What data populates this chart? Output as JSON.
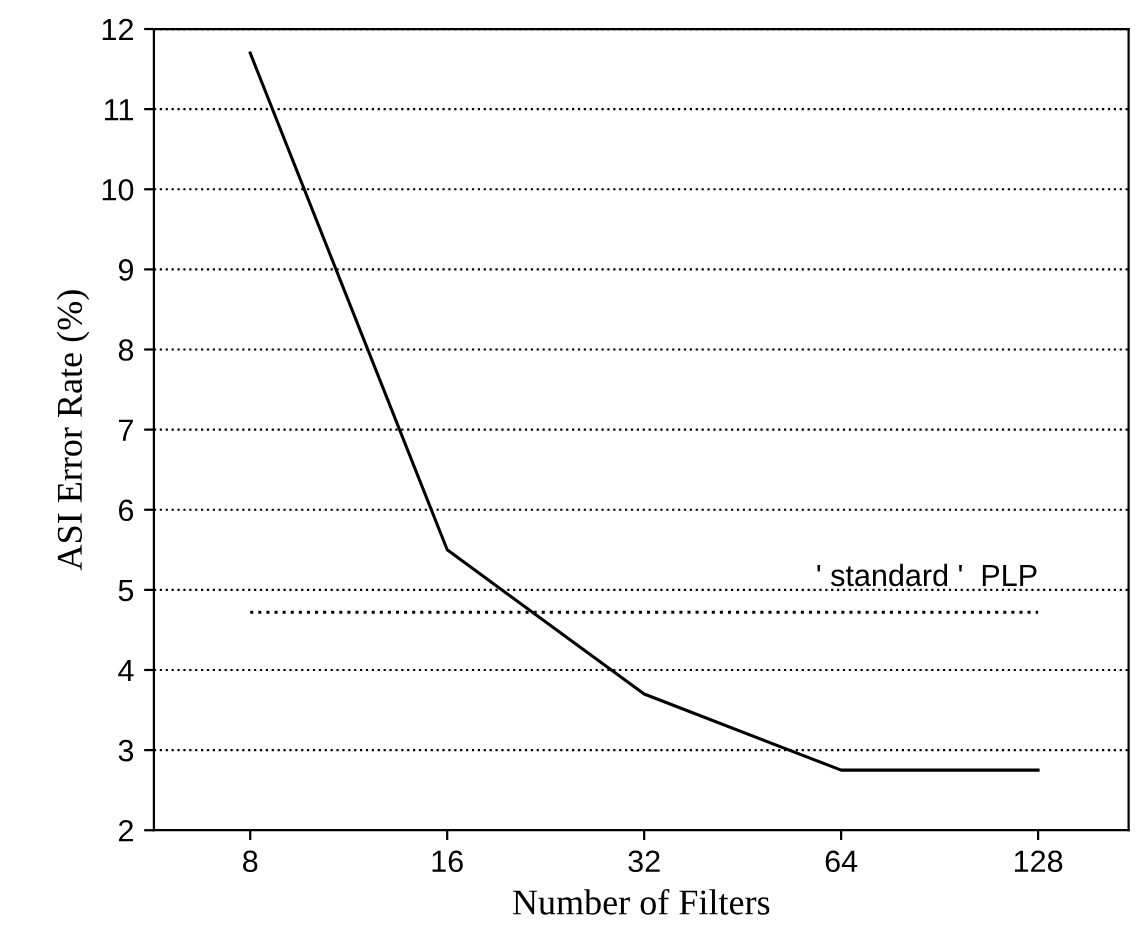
{
  "chart_data": {
    "type": "line",
    "xlabel": "Number of Filters",
    "ylabel": "ASI Error Rate (%)",
    "x": [
      8,
      16,
      32,
      64,
      128
    ],
    "series": [
      {
        "color": "#000000",
        "values": [
          11.7,
          5.5,
          3.7,
          2.75,
          2.75
        ]
      }
    ],
    "log": "x",
    "xlim": [
      5.7,
      176
    ],
    "xticks": [
      8,
      16,
      32,
      64,
      128
    ],
    "ylim": [
      2,
      12
    ],
    "yticks": [
      2,
      3,
      4,
      5,
      6,
      7,
      8,
      9,
      10,
      11,
      12
    ],
    "grid": "y",
    "legend": false,
    "marker": "none",
    "line_style": "solid",
    "ref_lines": [
      {
        "axis": "y",
        "value": 4.72,
        "label": "' standard '  PLP",
        "color": "#000000",
        "line_style": "dotted"
      }
    ]
  }
}
